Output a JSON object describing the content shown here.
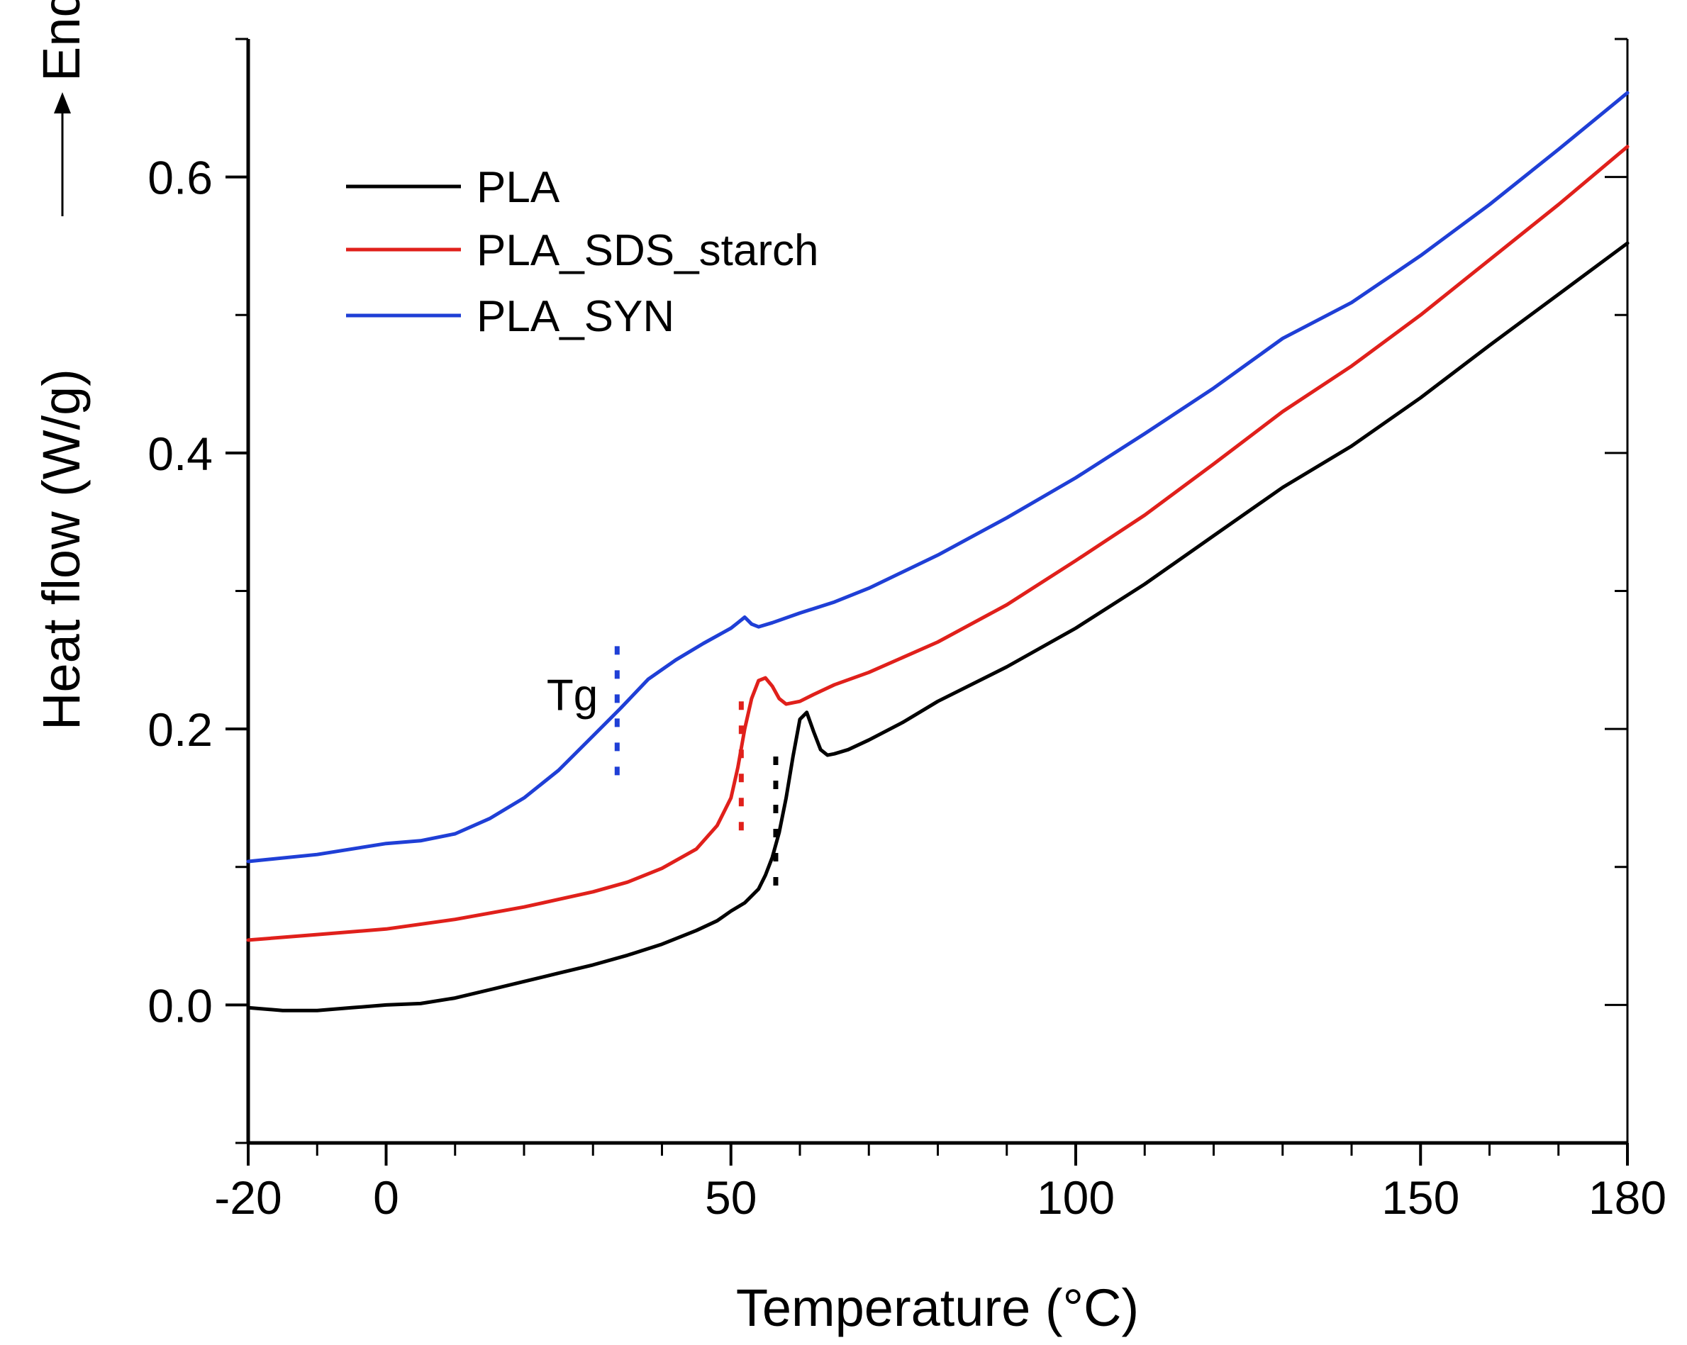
{
  "chart_data": {
    "type": "line",
    "title": "",
    "xlabel": "Temperature (°C)",
    "ylabel": "Heat flow (W/g)",
    "ylabel_suffix": "Endo",
    "xlim": [
      -20,
      180
    ],
    "ylim": [
      -0.1,
      0.7
    ],
    "x_ticks": [
      {
        "value": -20,
        "label": "-20"
      },
      {
        "value": 0,
        "label": "0"
      },
      {
        "value": 50,
        "label": "50"
      },
      {
        "value": 100,
        "label": "100"
      },
      {
        "value": 150,
        "label": "150"
      },
      {
        "value": 180,
        "label": "180"
      }
    ],
    "y_ticks": [
      {
        "value": 0.0,
        "label": "0.0"
      },
      {
        "value": 0.2,
        "label": "0.2"
      },
      {
        "value": 0.4,
        "label": "0.4"
      },
      {
        "value": 0.6,
        "label": "0.6"
      }
    ],
    "x_minor_step": 10,
    "y_minor_step": 0.1,
    "grid": false,
    "legend_position": "top-left",
    "series": [
      {
        "name": "PLA",
        "color": "#000000",
        "x": [
          -20,
          -15,
          -10,
          -5,
          0,
          5,
          10,
          15,
          20,
          25,
          30,
          35,
          40,
          45,
          48,
          50,
          52,
          54,
          55,
          56,
          57,
          58,
          59,
          60,
          61,
          62,
          63,
          64,
          65,
          67,
          70,
          75,
          80,
          90,
          100,
          110,
          120,
          130,
          140,
          150,
          160,
          170,
          180
        ],
        "y": [
          -0.002,
          -0.004,
          -0.004,
          -0.002,
          0.0,
          0.001,
          0.005,
          0.011,
          0.017,
          0.023,
          0.029,
          0.036,
          0.044,
          0.054,
          0.061,
          0.068,
          0.074,
          0.084,
          0.094,
          0.107,
          0.125,
          0.15,
          0.18,
          0.207,
          0.212,
          0.198,
          0.185,
          0.181,
          0.182,
          0.185,
          0.192,
          0.205,
          0.22,
          0.245,
          0.273,
          0.305,
          0.34,
          0.375,
          0.405,
          0.44,
          0.478,
          0.515,
          0.552
        ]
      },
      {
        "name": "PLA_SDS_starch",
        "color": "#e0201b",
        "x": [
          -20,
          -10,
          0,
          10,
          20,
          30,
          35,
          40,
          45,
          48,
          50,
          51,
          52,
          53,
          54,
          55,
          56,
          57,
          58,
          60,
          62,
          65,
          70,
          80,
          90,
          100,
          110,
          120,
          130,
          140,
          150,
          160,
          170,
          180
        ],
        "y": [
          0.047,
          0.051,
          0.055,
          0.062,
          0.071,
          0.082,
          0.089,
          0.099,
          0.113,
          0.13,
          0.15,
          0.172,
          0.2,
          0.222,
          0.235,
          0.237,
          0.231,
          0.222,
          0.218,
          0.22,
          0.225,
          0.232,
          0.241,
          0.263,
          0.29,
          0.322,
          0.355,
          0.392,
          0.43,
          0.463,
          0.5,
          0.54,
          0.58,
          0.622
        ]
      },
      {
        "name": "PLA_SYN",
        "color": "#1f3fd6",
        "x": [
          -20,
          -10,
          0,
          5,
          10,
          15,
          20,
          25,
          30,
          34,
          38,
          42,
          46,
          50,
          51,
          52,
          53,
          54,
          56,
          60,
          65,
          70,
          80,
          90,
          100,
          110,
          120,
          130,
          140,
          150,
          160,
          170,
          180
        ],
        "y": [
          0.104,
          0.109,
          0.117,
          0.119,
          0.124,
          0.135,
          0.15,
          0.17,
          0.195,
          0.215,
          0.236,
          0.25,
          0.262,
          0.273,
          0.277,
          0.281,
          0.276,
          0.274,
          0.277,
          0.284,
          0.292,
          0.302,
          0.326,
          0.353,
          0.382,
          0.414,
          0.447,
          0.483,
          0.509,
          0.543,
          0.58,
          0.62,
          0.661
        ]
      }
    ],
    "annotations": [
      {
        "label": "Tg",
        "x": 27,
        "y": 0.225
      }
    ],
    "tg_markers": [
      {
        "series": "PLA_SYN",
        "color": "#1f3fd6",
        "x": 33.5,
        "y_range": [
          0.16,
          0.26
        ]
      },
      {
        "series": "PLA_SDS_starch",
        "color": "#e0201b",
        "x": 51.5,
        "y_range": [
          0.12,
          0.22
        ]
      },
      {
        "series": "PLA",
        "color": "#000000",
        "x": 56.5,
        "y_range": [
          0.08,
          0.18
        ]
      }
    ]
  }
}
